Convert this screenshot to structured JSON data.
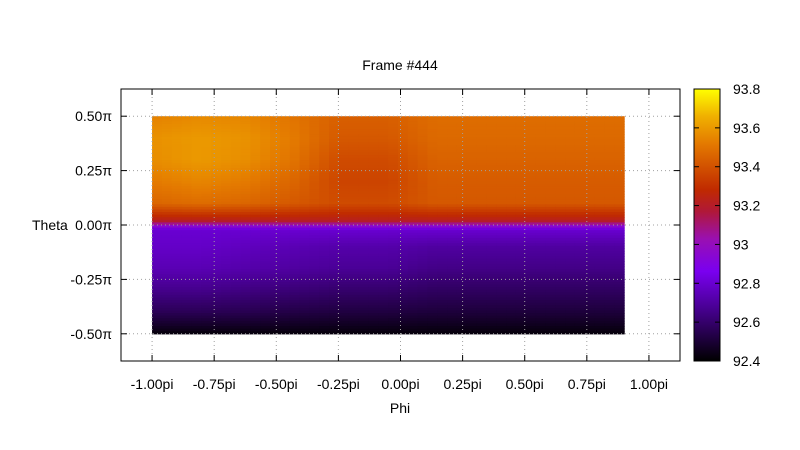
{
  "chart_data": {
    "type": "heatmap",
    "title": "Frame #444",
    "xlabel": "Phi",
    "ylabel": "Theta",
    "xlim": [
      -1.125,
      1.125
    ],
    "ylim": [
      -0.625,
      0.625
    ],
    "x_ticks": [
      {
        "value": -1.0,
        "label": "-1.00pi"
      },
      {
        "value": -0.75,
        "label": "-0.75pi"
      },
      {
        "value": -0.5,
        "label": "-0.50pi"
      },
      {
        "value": -0.25,
        "label": "-0.25pi"
      },
      {
        "value": 0.0,
        "label": "0.00pi"
      },
      {
        "value": 0.25,
        "label": "0.25pi"
      },
      {
        "value": 0.5,
        "label": "0.50pi"
      },
      {
        "value": 0.75,
        "label": "0.75pi"
      },
      {
        "value": 1.0,
        "label": "1.00pi"
      }
    ],
    "y_ticks": [
      {
        "value": 0.5,
        "label": "0.50π"
      },
      {
        "value": 0.25,
        "label": "0.25π"
      },
      {
        "value": 0.0,
        "label": "0.00π"
      },
      {
        "value": -0.25,
        "label": "-0.25π"
      },
      {
        "value": -0.5,
        "label": "-0.50π"
      }
    ],
    "grid": true,
    "data_x_range": [
      -1.0,
      0.9
    ],
    "data_y_range": [
      -0.5,
      0.5
    ],
    "z_grid": {
      "x": [
        -1.0,
        -0.81,
        -0.62,
        -0.43,
        -0.24,
        -0.05,
        0.14,
        0.33,
        0.52,
        0.71,
        0.9
      ],
      "y": [
        0.5,
        0.4,
        0.3,
        0.2,
        0.1,
        0.02,
        -0.02,
        -0.1,
        -0.2,
        -0.3,
        -0.4,
        -0.5
      ],
      "values": [
        [
          93.54,
          93.56,
          93.55,
          93.5,
          93.44,
          93.44,
          93.48,
          93.48,
          93.48,
          93.48,
          93.48
        ],
        [
          93.58,
          93.6,
          93.58,
          93.52,
          93.42,
          93.42,
          93.47,
          93.47,
          93.47,
          93.47,
          93.47
        ],
        [
          93.57,
          93.6,
          93.57,
          93.5,
          93.38,
          93.38,
          93.45,
          93.45,
          93.45,
          93.45,
          93.45
        ],
        [
          93.52,
          93.55,
          93.52,
          93.46,
          93.36,
          93.36,
          93.43,
          93.43,
          93.43,
          93.43,
          93.43
        ],
        [
          93.46,
          93.48,
          93.46,
          93.42,
          93.38,
          93.38,
          93.42,
          93.42,
          93.42,
          93.42,
          93.42
        ],
        [
          93.22,
          93.22,
          93.22,
          93.22,
          93.22,
          93.22,
          93.22,
          93.22,
          93.22,
          93.22,
          93.22
        ],
        [
          92.8,
          92.8,
          92.8,
          92.8,
          92.8,
          92.8,
          92.8,
          92.8,
          92.8,
          92.8,
          92.8
        ],
        [
          92.78,
          92.78,
          92.76,
          92.74,
          92.72,
          92.72,
          92.7,
          92.7,
          92.7,
          92.7,
          92.7
        ],
        [
          92.74,
          92.74,
          92.72,
          92.7,
          92.68,
          92.68,
          92.65,
          92.65,
          92.65,
          92.65,
          92.65
        ],
        [
          92.66,
          92.66,
          92.64,
          92.62,
          92.6,
          92.6,
          92.58,
          92.58,
          92.58,
          92.58,
          92.58
        ],
        [
          92.56,
          92.56,
          92.55,
          92.53,
          92.52,
          92.52,
          92.51,
          92.51,
          92.51,
          92.51,
          92.51
        ],
        [
          92.42,
          92.42,
          92.42,
          92.42,
          92.42,
          92.42,
          92.42,
          92.42,
          92.42,
          92.42,
          92.42
        ]
      ]
    },
    "colorbar": {
      "range": [
        92.4,
        93.8
      ],
      "ticks": [
        {
          "value": 93.8,
          "label": "93.8"
        },
        {
          "value": 93.6,
          "label": "93.6"
        },
        {
          "value": 93.4,
          "label": "93.4"
        },
        {
          "value": 93.2,
          "label": "93.2"
        },
        {
          "value": 93.0,
          "label": "93"
        },
        {
          "value": 92.8,
          "label": "92.8"
        },
        {
          "value": 92.6,
          "label": "92.6"
        },
        {
          "value": 92.4,
          "label": "92.4"
        }
      ],
      "palette": "black-purple-red-orange-yellow"
    }
  }
}
